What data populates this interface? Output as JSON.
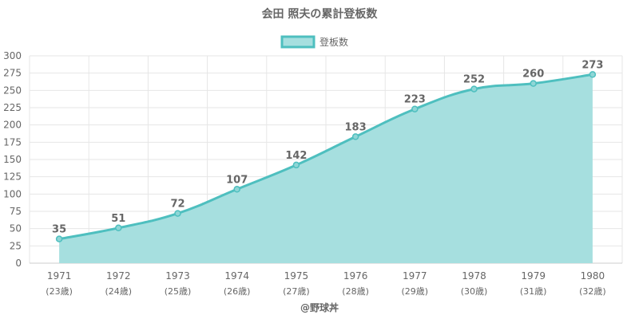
{
  "chart_data": {
    "type": "area",
    "title": "会田 照夫の累計登板数",
    "legend": {
      "label": "登板数",
      "position": "top"
    },
    "categories": [
      "1971",
      "1972",
      "1973",
      "1974",
      "1975",
      "1976",
      "1977",
      "1978",
      "1979",
      "1980"
    ],
    "sublabels": [
      "(23歳)",
      "(24歳)",
      "(25歳)",
      "(26歳)",
      "(27歳)",
      "(28歳)",
      "(29歳)",
      "(30歳)",
      "(31歳)",
      "(32歳)"
    ],
    "series": [
      {
        "name": "登板数",
        "values": [
          35,
          51,
          72,
          107,
          142,
          183,
          223,
          252,
          260,
          273
        ]
      }
    ],
    "ylim": [
      0,
      300
    ],
    "ytick_step": 25,
    "grid": true,
    "colors": {
      "line": "#4ebfbf",
      "fill": "#a6dfdf",
      "grid": "#e6e6e6",
      "text": "#666666"
    }
  },
  "footer": "@野球丼"
}
